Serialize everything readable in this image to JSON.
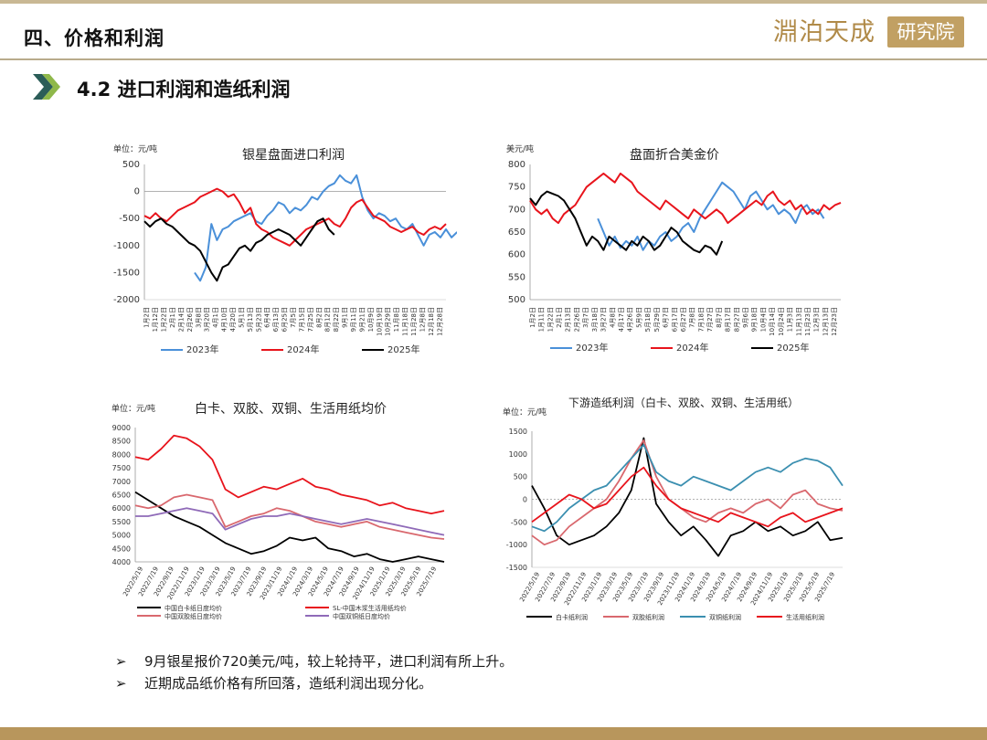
{
  "header": {
    "title": "四、价格和利润",
    "logo_text": "淵泊天成",
    "logo_seal": "研究院"
  },
  "section": {
    "title": "4.2 进口利润和造纸利润"
  },
  "notes": [
    "9月银星报价720美元/吨，较上轮持平，进口利润有所上升。",
    "近期成品纸价格有所回落，造纸利润出现分化。"
  ],
  "colors": {
    "series_2023": "#4a90d9",
    "series_2024": "#e8141c",
    "series_2025": "#000000",
    "accent": "#b8965c",
    "pink": "#d9686e",
    "purple": "#8f6ab8",
    "teal": "#3b8fb0"
  },
  "chart_data": [
    {
      "id": "chart1",
      "type": "line",
      "title": "银星盘面进口利润",
      "unit_label": "单位：元/吨",
      "ylim": [
        -2000,
        500
      ],
      "yticks": [
        500,
        0,
        -500,
        -1000,
        -1500,
        -2000
      ],
      "xticks": [
        "1月2日",
        "1月12日",
        "1月22日",
        "2月1日",
        "2月14日",
        "2月26日",
        "3月8日",
        "3月20日",
        "4月1日",
        "4月10日",
        "4月20日",
        "5月1日",
        "5月13日",
        "5月23日",
        "6月4日",
        "6月13日",
        "6月25日",
        "7月5日",
        "7月15日",
        "7月25日",
        "8月2日",
        "8月12日",
        "8月22日",
        "9月1日",
        "9月11日",
        "9月21日",
        "10月9日",
        "10月19日",
        "10月29日",
        "11月8日",
        "11月18日",
        "11月28日",
        "12月8日",
        "12月18日",
        "12月28日"
      ],
      "grid": false,
      "legend": "bottom",
      "series": [
        {
          "name": "2023年",
          "color": "#4a90d9",
          "x0": 9,
          "values": [
            -1500,
            -1650,
            -1400,
            -600,
            -900,
            -700,
            -650,
            -550,
            -500,
            -450,
            -400,
            -550,
            -600,
            -450,
            -350,
            -200,
            -250,
            -400,
            -300,
            -350,
            -250,
            -100,
            -150,
            0,
            100,
            150,
            300,
            200,
            150,
            300,
            -100,
            -350,
            -500,
            -400,
            -450,
            -550,
            -500,
            -650,
            -700,
            -600,
            -800,
            -1000,
            -800,
            -750,
            -850,
            -700,
            -850,
            -750
          ]
        },
        {
          "name": "2024年",
          "color": "#e8141c",
          "x0": 0,
          "values": [
            -450,
            -500,
            -400,
            -500,
            -550,
            -450,
            -350,
            -300,
            -250,
            -200,
            -100,
            -50,
            0,
            50,
            0,
            -100,
            -50,
            -200,
            -400,
            -300,
            -600,
            -700,
            -750,
            -850,
            -900,
            -950,
            -1000,
            -900,
            -800,
            -700,
            -650,
            -600,
            -550,
            -500,
            -600,
            -650,
            -500,
            -300,
            -200,
            -150,
            -300,
            -450,
            -500,
            -550,
            -650,
            -700,
            -750,
            -700,
            -650,
            -750,
            -800,
            -700,
            -650,
            -700,
            -600
          ]
        },
        {
          "name": "2025年",
          "color": "#000000",
          "x0": 0,
          "values": [
            -550,
            -650,
            -550,
            -500,
            -600,
            -650,
            -750,
            -850,
            -950,
            -1000,
            -1100,
            -1300,
            -1500,
            -1650,
            -1400,
            -1350,
            -1200,
            -1050,
            -1000,
            -1100,
            -950,
            -900,
            -800,
            -750,
            -700,
            -750,
            -800,
            -900,
            -1000,
            -850,
            -700,
            -550,
            -500,
            -700,
            -800
          ]
        }
      ]
    },
    {
      "id": "chart2",
      "type": "line",
      "title": "盘面折合美金价",
      "unit_label": "美元/吨",
      "ylim": [
        500,
        800
      ],
      "yticks": [
        800,
        750,
        700,
        650,
        600,
        550,
        500
      ],
      "xticks": [
        "1月2日",
        "1月11日",
        "1月22日",
        "2月1日",
        "2月13日",
        "2月26日",
        "3月7日",
        "3月18日",
        "3月27日",
        "4月8日",
        "4月17日",
        "4月26日",
        "5月9日",
        "5月18日",
        "5月29日",
        "6月7日",
        "6月17日",
        "6月27日",
        "7月8日",
        "7月18日",
        "7月27日",
        "8月7日",
        "8月17日",
        "8月27日",
        "9月6日",
        "9月18日",
        "10月4日",
        "10月14日",
        "10月24日",
        "11月3日",
        "11月13日",
        "11月23日",
        "12月3日",
        "12月13日",
        "12月23日"
      ],
      "grid": false,
      "legend": "bottom",
      "series": [
        {
          "name": "2023年",
          "color": "#4a90d9",
          "x0": 12,
          "values": [
            680,
            650,
            620,
            640,
            615,
            630,
            620,
            640,
            610,
            630,
            620,
            640,
            650,
            630,
            640,
            660,
            670,
            650,
            680,
            700,
            720,
            740,
            760,
            750,
            740,
            720,
            700,
            730,
            740,
            720,
            700,
            710,
            690,
            700,
            690,
            670,
            700,
            710,
            690,
            700,
            680
          ]
        },
        {
          "name": "2024年",
          "color": "#e8141c",
          "x0": 0,
          "values": [
            720,
            700,
            690,
            700,
            680,
            670,
            690,
            700,
            710,
            730,
            750,
            760,
            770,
            780,
            770,
            760,
            780,
            770,
            760,
            740,
            730,
            720,
            710,
            700,
            720,
            710,
            700,
            690,
            680,
            700,
            690,
            680,
            690,
            700,
            690,
            670,
            680,
            690,
            700,
            710,
            720,
            710,
            730,
            740,
            720,
            710,
            720,
            700,
            710,
            690,
            700,
            690,
            710,
            700,
            710,
            715
          ]
        },
        {
          "name": "2025年",
          "color": "#000000",
          "x0": 0,
          "values": [
            725,
            710,
            730,
            740,
            735,
            730,
            720,
            700,
            680,
            650,
            620,
            640,
            630,
            610,
            640,
            630,
            620,
            610,
            630,
            620,
            640,
            630,
            610,
            620,
            640,
            660,
            650,
            630,
            620,
            610,
            605,
            620,
            615,
            600,
            630
          ]
        }
      ]
    },
    {
      "id": "chart3",
      "type": "line",
      "title": "白卡、双胶、双铜、生活用纸均价",
      "unit_label": "单位：元/吨",
      "ylim": [
        4000,
        9000
      ],
      "yticks": [
        9000,
        8500,
        8000,
        7500,
        7000,
        6500,
        6000,
        5500,
        5000,
        4500,
        4000
      ],
      "xticks": [
        "2022/5/19",
        "2022/7/19",
        "2022/9/19",
        "2022/11/19",
        "2023/1/19",
        "2023/3/19",
        "2023/5/19",
        "2023/7/19",
        "2023/9/19",
        "2023/11/19",
        "2024/1/19",
        "2024/3/19",
        "2024/5/19",
        "2024/7/19",
        "2024/9/19",
        "2024/11/19",
        "2025/1/19",
        "2025/3/19",
        "2025/5/19",
        "2025/7/19"
      ],
      "grid": false,
      "legend": "bottom",
      "series": [
        {
          "name": "中国白卡纸日度均价",
          "color": "#000000",
          "values": [
            6600,
            6300,
            6000,
            5700,
            5500,
            5300,
            5000,
            4700,
            4500,
            4300,
            4400,
            4600,
            4900,
            4800,
            4900,
            4500,
            4400,
            4200,
            4300,
            4100,
            4000,
            4100,
            4200,
            4100,
            4000
          ]
        },
        {
          "name": "SL-中国木浆生活用纸均价",
          "color": "#e8141c",
          "values": [
            7900,
            7800,
            8200,
            8700,
            8600,
            8300,
            7800,
            6700,
            6400,
            6600,
            6800,
            6700,
            6900,
            7100,
            6800,
            6700,
            6500,
            6400,
            6300,
            6100,
            6200,
            6000,
            5900,
            5800,
            5900
          ]
        },
        {
          "name": "中国双胶纸日度均价",
          "color": "#d9686e",
          "values": [
            6100,
            6000,
            6100,
            6400,
            6500,
            6400,
            6300,
            5300,
            5500,
            5700,
            5800,
            6000,
            5900,
            5700,
            5500,
            5400,
            5300,
            5400,
            5500,
            5300,
            5200,
            5100,
            5000,
            4900,
            4850
          ]
        },
        {
          "name": "中国双铜纸日度均价",
          "color": "#8f6ab8",
          "values": [
            5700,
            5700,
            5800,
            5900,
            6000,
            5900,
            5800,
            5200,
            5400,
            5600,
            5700,
            5700,
            5800,
            5700,
            5600,
            5500,
            5400,
            5500,
            5600,
            5500,
            5400,
            5300,
            5200,
            5100,
            5000
          ]
        }
      ]
    },
    {
      "id": "chart4",
      "type": "line",
      "title": "下游造纸利润（白卡、双胶、双铜、生活用纸）",
      "unit_label": "单位：元/吨",
      "ylim": [
        -1500,
        1500
      ],
      "yticks": [
        1500,
        1000,
        500,
        0,
        -500,
        -1000,
        -1500
      ],
      "xticks": [
        "2022/5/19",
        "2022/7/19",
        "2022/9/19",
        "2022/11/19",
        "2023/1/19",
        "2023/3/19",
        "2023/5/19",
        "2023/7/19",
        "2023/9/19",
        "2023/11/19",
        "2024/1/19",
        "2024/3/19",
        "2024/5/19",
        "2024/7/19",
        "2024/9/19",
        "2024/11/19",
        "2025/1/19",
        "2025/3/19",
        "2025/5/19",
        "2025/7/19"
      ],
      "grid": false,
      "legend": "bottom",
      "series": [
        {
          "name": "白卡纸利润",
          "color": "#000000",
          "values": [
            300,
            -200,
            -800,
            -1000,
            -900,
            -800,
            -600,
            -300,
            200,
            1350,
            -100,
            -500,
            -800,
            -600,
            -900,
            -1250,
            -800,
            -700,
            -500,
            -700,
            -600,
            -800,
            -700,
            -500,
            -900,
            -850
          ]
        },
        {
          "name": "双胶纸利润",
          "color": "#d9686e",
          "values": [
            -800,
            -1000,
            -900,
            -600,
            -400,
            -200,
            0,
            400,
            900,
            1300,
            500,
            0,
            -200,
            -400,
            -500,
            -300,
            -200,
            -300,
            -100,
            0,
            -200,
            100,
            200,
            -100,
            -200,
            -250
          ]
        },
        {
          "name": "双铜纸利润",
          "color": "#3b8fb0",
          "values": [
            -600,
            -700,
            -500,
            -200,
            0,
            200,
            300,
            600,
            900,
            1200,
            600,
            400,
            300,
            500,
            400,
            300,
            200,
            400,
            600,
            700,
            600,
            800,
            900,
            850,
            700,
            300
          ]
        },
        {
          "name": "生活用纸利润",
          "color": "#e8141c",
          "values": [
            -500,
            -300,
            -100,
            100,
            0,
            -200,
            -100,
            200,
            500,
            700,
            300,
            0,
            -200,
            -300,
            -400,
            -500,
            -300,
            -400,
            -500,
            -600,
            -400,
            -300,
            -500,
            -400,
            -300,
            -200
          ]
        }
      ]
    }
  ]
}
